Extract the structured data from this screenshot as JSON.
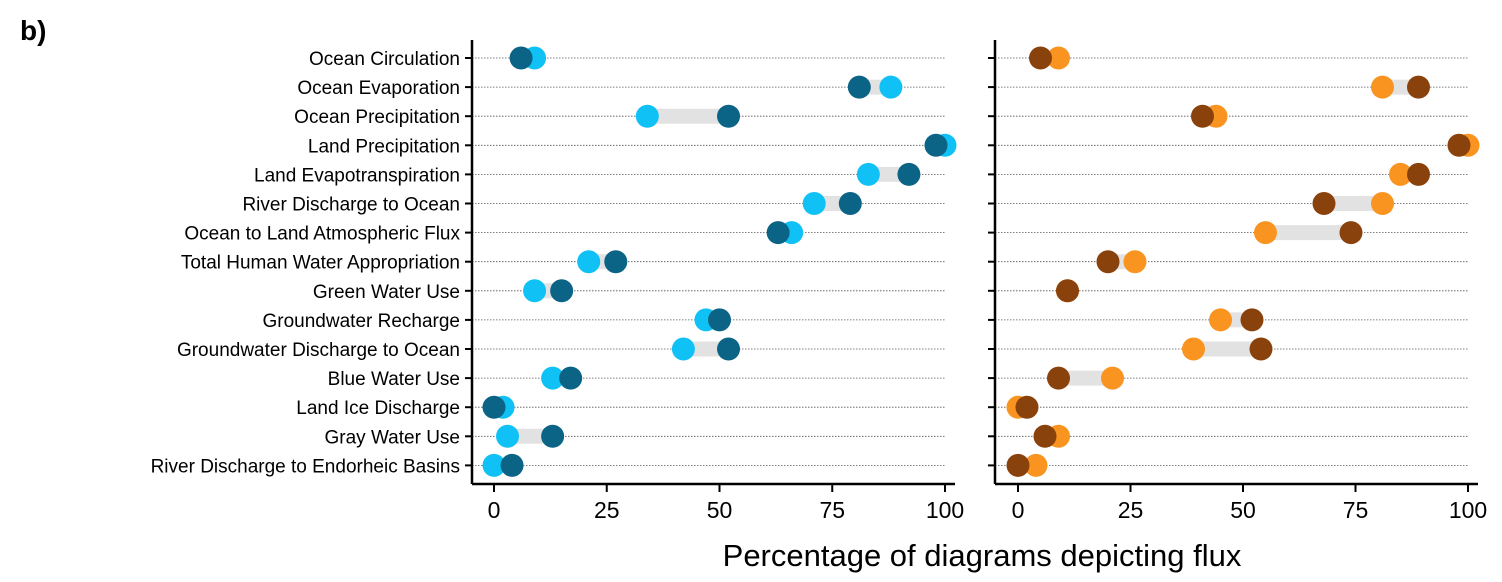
{
  "chart_data": {
    "type": "dumbbell",
    "panel_label": "b)",
    "xlabel": "Percentage of diagrams depicting flux",
    "xlim": [
      0,
      100
    ],
    "xticks": [
      0,
      25,
      50,
      75,
      100
    ],
    "grid": false,
    "categories": [
      "Ocean Circulation",
      "Ocean Evaporation",
      "Ocean Precipitation",
      "Land Precipitation",
      "Land Evapotranspiration",
      "River Discharge to Ocean",
      "Ocean to Land Atmospheric Flux",
      "Total Human Water Appropriation",
      "Green Water Use",
      "Groundwater Recharge",
      "Groundwater Discharge to Ocean",
      "Blue Water Use",
      "Land Ice Discharge",
      "Gray Water Use",
      "River Discharge to Endorheic Basins"
    ],
    "panels": [
      {
        "series": [
          {
            "color": "#10c1f5",
            "values": [
              9,
              88,
              34,
              100,
              83,
              71,
              66,
              21,
              9,
              47,
              42,
              13,
              2,
              3,
              0
            ]
          },
          {
            "color": "#0b6385",
            "values": [
              6,
              81,
              52,
              98,
              92,
              79,
              63,
              27,
              15,
              50,
              52,
              17,
              0,
              13,
              4
            ]
          }
        ]
      },
      {
        "series": [
          {
            "color": "#f99420",
            "values": [
              9,
              81,
              44,
              100,
              85,
              81,
              55,
              26,
              11,
              45,
              39,
              21,
              0,
              9,
              4
            ]
          },
          {
            "color": "#8a420d",
            "values": [
              5,
              89,
              41,
              98,
              89,
              68,
              74,
              20,
              11,
              52,
              54,
              9,
              2,
              6,
              0
            ]
          }
        ]
      }
    ]
  }
}
